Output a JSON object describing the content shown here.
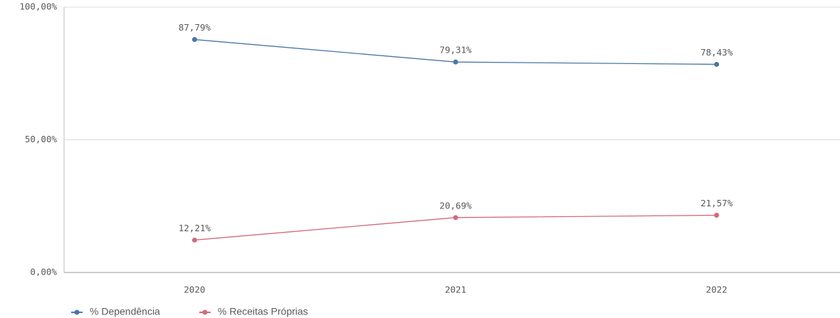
{
  "chart_data": {
    "type": "line",
    "categories": [
      "2020",
      "2021",
      "2022"
    ],
    "series": [
      {
        "name": "% Dependência",
        "color": "#4a77a8",
        "values": [
          87.79,
          79.31,
          78.43
        ],
        "value_labels": [
          "87,79%",
          "79,31%",
          "78,43%"
        ]
      },
      {
        "name": "% Receitas Próprias",
        "color": "#d26a7e",
        "values": [
          12.21,
          20.69,
          21.57
        ],
        "value_labels": [
          "12,21%",
          "20,69%",
          "21,57%"
        ]
      }
    ],
    "ylim": [
      0,
      100
    ],
    "yticks": [
      {
        "value": 0,
        "label": "0,00%"
      },
      {
        "value": 50,
        "label": "50,00%"
      },
      {
        "value": 100,
        "label": "100,00%"
      }
    ],
    "grid": true,
    "legend": "bottom-left"
  }
}
